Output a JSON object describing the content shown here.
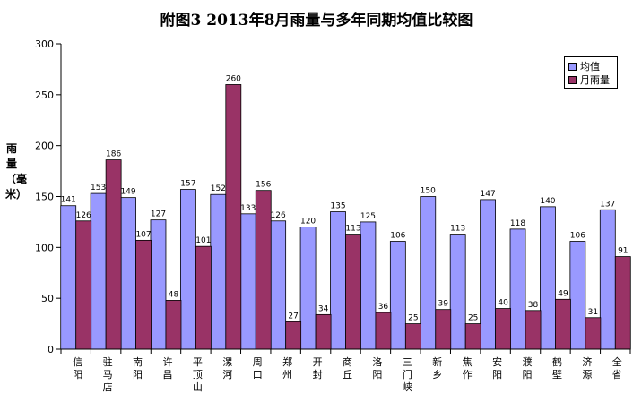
{
  "chart_data": {
    "type": "bar",
    "title": "附图3   2013年8月雨量与多年同期均值比较图",
    "ylabel": "雨量（毫米）",
    "xlabel": "",
    "ylim": [
      0,
      300
    ],
    "yticks": [
      0,
      50,
      100,
      150,
      200,
      250,
      300
    ],
    "grid": false,
    "legend_position": "top-right",
    "categories": [
      "信阳",
      "驻马店",
      "南阳",
      "许昌",
      "平顶山",
      "漯河",
      "周口",
      "郑州",
      "开封",
      "商丘",
      "洛阳",
      "三门峡",
      "新乡",
      "焦作",
      "安阳",
      "濮阳",
      "鹤壁",
      "济源",
      "全省"
    ],
    "series": [
      {
        "name": "均值",
        "color": "#9999ff",
        "values": [
          141,
          153,
          149,
          127,
          157,
          152,
          133,
          126,
          120,
          135,
          125,
          106,
          150,
          113,
          147,
          118,
          140,
          106,
          137
        ]
      },
      {
        "name": "月雨量",
        "color": "#993366",
        "values": [
          126,
          186,
          107,
          48,
          101,
          260,
          156,
          27,
          34,
          113,
          36,
          25,
          39,
          25,
          40,
          38,
          49,
          31,
          91
        ]
      }
    ]
  }
}
